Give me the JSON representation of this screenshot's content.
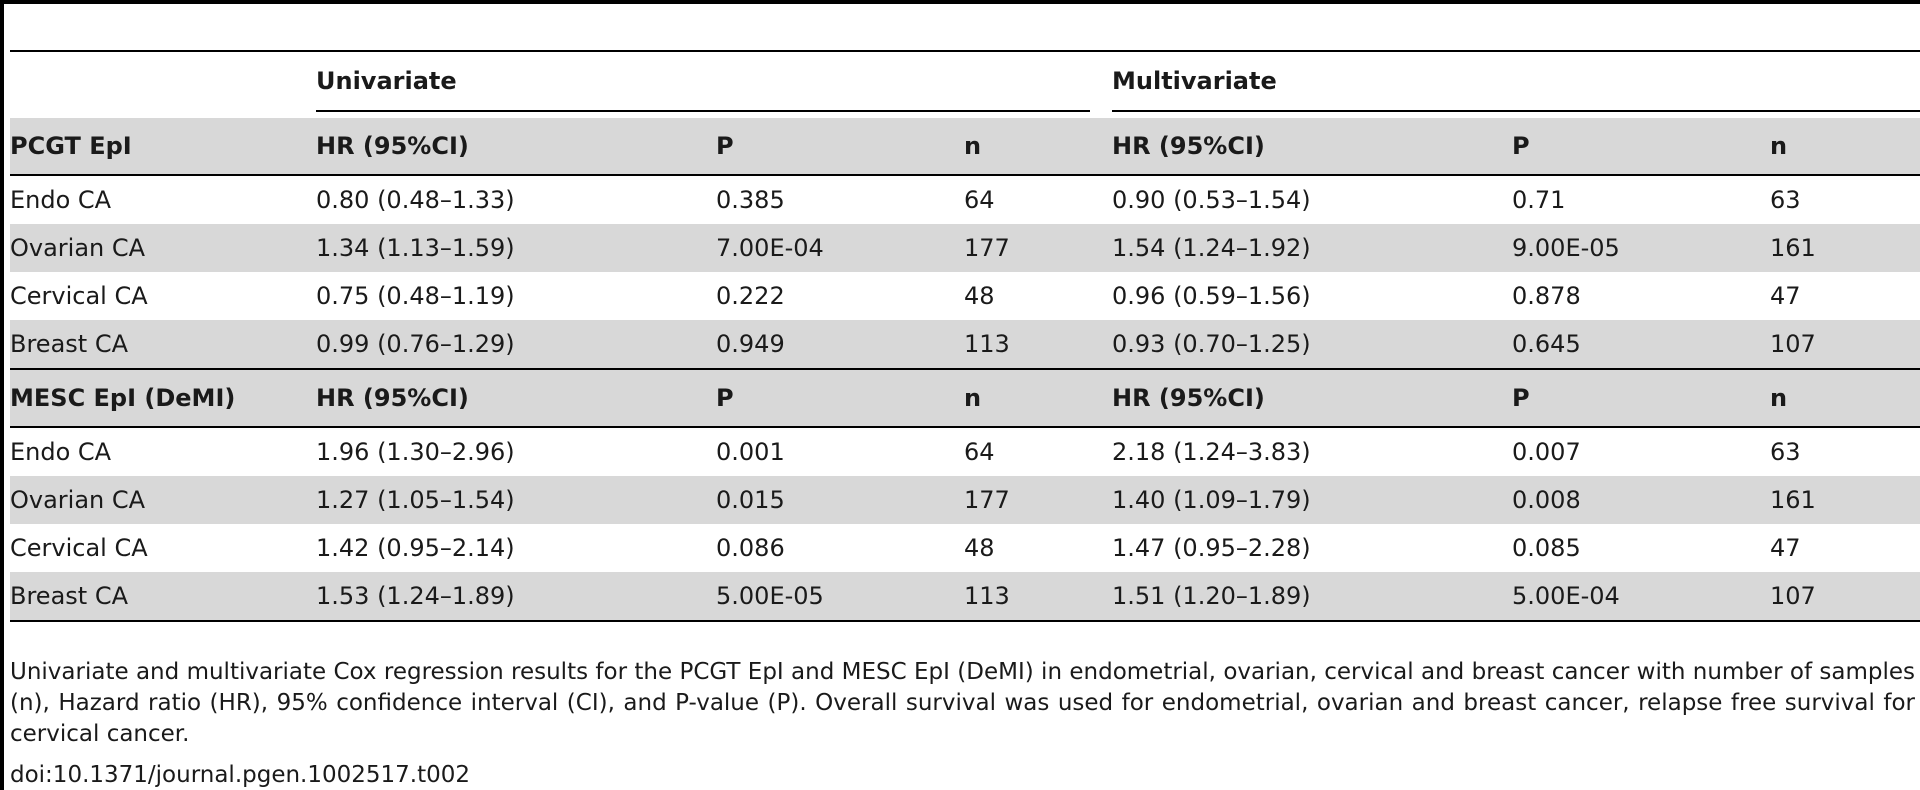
{
  "table": {
    "group_headers": {
      "univariate": "Univariate",
      "multivariate": "Multivariate"
    },
    "sections": [
      {
        "label": "PCGT EpI",
        "columns": [
          "HR (95%CI)",
          "P",
          "n",
          "HR (95%CI)",
          "P",
          "n"
        ],
        "rows": [
          {
            "name": "Endo CA",
            "uni_hr": "0.80 (0.48–1.33)",
            "uni_p": "0.385",
            "uni_n": "64",
            "multi_hr": "0.90 (0.53–1.54)",
            "multi_p": "0.71",
            "multi_n": "63"
          },
          {
            "name": "Ovarian CA",
            "uni_hr": "1.34 (1.13–1.59)",
            "uni_p": "7.00E-04",
            "uni_n": "177",
            "multi_hr": "1.54 (1.24–1.92)",
            "multi_p": "9.00E-05",
            "multi_n": "161"
          },
          {
            "name": "Cervical CA",
            "uni_hr": "0.75 (0.48–1.19)",
            "uni_p": "0.222",
            "uni_n": "48",
            "multi_hr": "0.96 (0.59–1.56)",
            "multi_p": "0.878",
            "multi_n": "47"
          },
          {
            "name": "Breast CA",
            "uni_hr": "0.99 (0.76–1.29)",
            "uni_p": "0.949",
            "uni_n": "113",
            "multi_hr": "0.93 (0.70–1.25)",
            "multi_p": "0.645",
            "multi_n": "107"
          }
        ]
      },
      {
        "label": "MESC EpI (DeMI)",
        "columns": [
          "HR (95%CI)",
          "P",
          "n",
          "HR (95%CI)",
          "P",
          "n"
        ],
        "rows": [
          {
            "name": "Endo CA",
            "uni_hr": "1.96 (1.30–2.96)",
            "uni_p": "0.001",
            "uni_n": "64",
            "multi_hr": "2.18 (1.24–3.83)",
            "multi_p": "0.007",
            "multi_n": "63"
          },
          {
            "name": "Ovarian CA",
            "uni_hr": "1.27 (1.05–1.54)",
            "uni_p": "0.015",
            "uni_n": "177",
            "multi_hr": "1.40 (1.09–1.79)",
            "multi_p": "0.008",
            "multi_n": "161"
          },
          {
            "name": "Cervical CA",
            "uni_hr": "1.42 (0.95–2.14)",
            "uni_p": "0.086",
            "uni_n": "48",
            "multi_hr": "1.47 (0.95–2.28)",
            "multi_p": "0.085",
            "multi_n": "47"
          },
          {
            "name": "Breast CA",
            "uni_hr": "1.53 (1.24–1.89)",
            "uni_p": "5.00E-05",
            "uni_n": "113",
            "multi_hr": "1.51 (1.20–1.89)",
            "multi_p": "5.00E-04",
            "multi_n": "107"
          }
        ]
      }
    ]
  },
  "caption": "Univariate and multivariate Cox regression results for the PCGT EpI and MESC EpI (DeMI) in endometrial, ovarian, cervical and breast cancer with number of samples (n), Hazard ratio (HR), 95% confidence interval (CI), and P-value (P). Overall survival was used for endometrial, ovarian and breast cancer, relapse free survival for cervical cancer.",
  "doi": "doi:10.1371/journal.pgen.1002517.t002"
}
